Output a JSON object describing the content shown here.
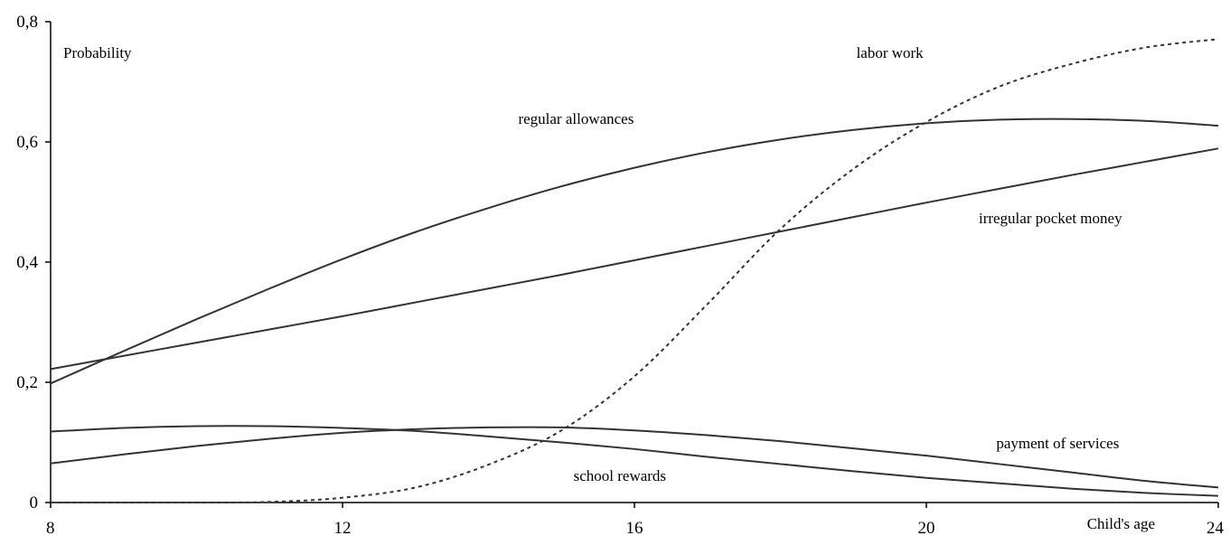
{
  "chart_data": {
    "type": "line",
    "title": "",
    "ylabel": "Probability",
    "xlabel": "Child's age",
    "xlim": [
      8,
      24
    ],
    "ylim": [
      0,
      0.8
    ],
    "x_ticks": [
      8,
      12,
      16,
      20,
      24
    ],
    "x_tick_labels": [
      "8",
      "12",
      "16",
      "20",
      "24"
    ],
    "y_ticks": [
      0,
      0.2,
      0.4,
      0.6,
      0.8
    ],
    "y_tick_labels": [
      "0",
      "0,2",
      "0,4",
      "0,6",
      "0,8"
    ],
    "grid": false,
    "legend": "none",
    "x": [
      8,
      9,
      10,
      11,
      12,
      13,
      14,
      15,
      16,
      17,
      18,
      19,
      20,
      21,
      22,
      23,
      24
    ],
    "series": [
      {
        "name": "regular allowances",
        "style": "solid",
        "color": "#333333",
        "values": [
          0.198,
          0.252,
          0.305,
          0.356,
          0.405,
          0.45,
          0.49,
          0.526,
          0.557,
          0.583,
          0.604,
          0.62,
          0.631,
          0.637,
          0.638,
          0.635,
          0.627
        ]
      },
      {
        "name": "irregular pocket money",
        "style": "solid",
        "color": "#333333",
        "values": [
          0.222,
          0.244,
          0.266,
          0.288,
          0.31,
          0.333,
          0.356,
          0.379,
          0.403,
          0.427,
          0.451,
          0.475,
          0.499,
          0.522,
          0.545,
          0.567,
          0.589
        ]
      },
      {
        "name": "labor work",
        "style": "dashed",
        "color": "#333333",
        "values": [
          0.0,
          0.0,
          0.0,
          0.001,
          0.008,
          0.025,
          0.063,
          0.12,
          0.21,
          0.33,
          0.455,
          0.555,
          0.633,
          0.692,
          0.73,
          0.757,
          0.771
        ]
      },
      {
        "name": "payment of services",
        "style": "solid",
        "color": "#333333",
        "values": [
          0.065,
          0.08,
          0.094,
          0.106,
          0.116,
          0.122,
          0.125,
          0.125,
          0.12,
          0.112,
          0.102,
          0.09,
          0.078,
          0.064,
          0.05,
          0.036,
          0.025
        ]
      },
      {
        "name": "school rewards",
        "style": "solid",
        "color": "#333333",
        "values": [
          0.118,
          0.124,
          0.127,
          0.127,
          0.124,
          0.119,
          0.11,
          0.1,
          0.089,
          0.076,
          0.064,
          0.052,
          0.041,
          0.032,
          0.023,
          0.016,
          0.011
        ]
      }
    ],
    "annotations": [
      {
        "series": "labor work",
        "text": "labor work",
        "x": 19.5,
        "y": 0.74
      },
      {
        "series": "regular allowances",
        "text": "regular allowances",
        "x": 15.2,
        "y": 0.63
      },
      {
        "series": "irregular pocket money",
        "text": "irregular pocket money",
        "x": 21.7,
        "y": 0.465
      },
      {
        "series": "payment of services",
        "text": "payment of services",
        "x": 21.8,
        "y": 0.09
      },
      {
        "series": "school rewards",
        "text": "school rewards",
        "x": 15.8,
        "y": 0.036
      }
    ]
  }
}
